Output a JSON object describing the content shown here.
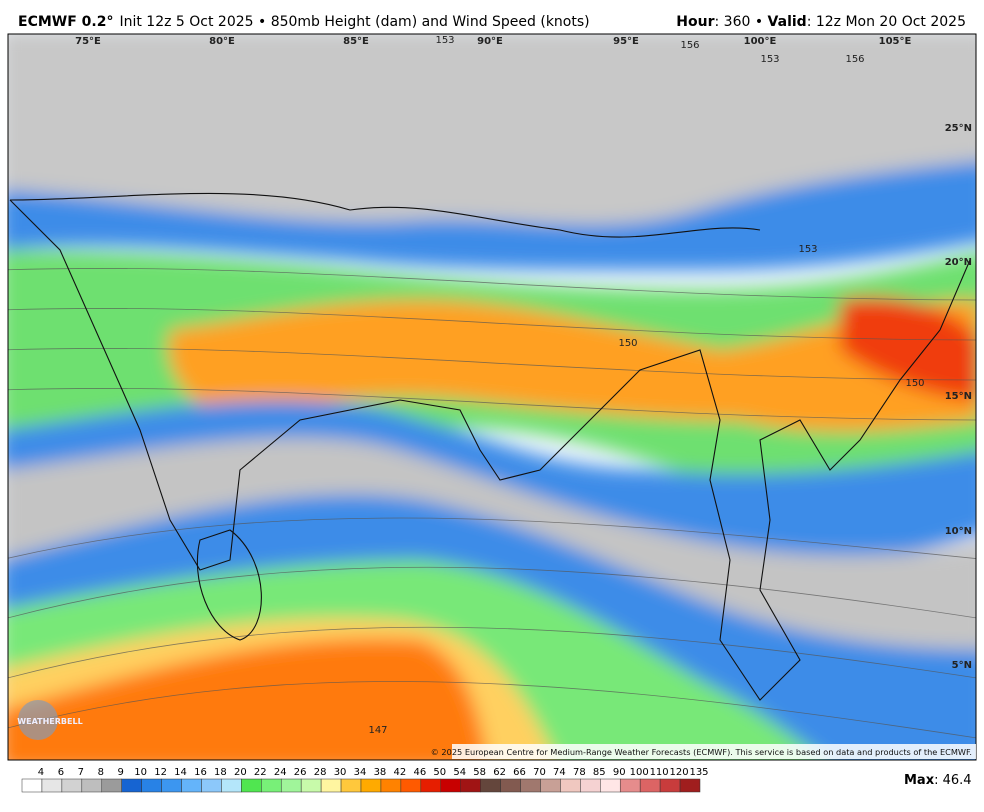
{
  "header": {
    "model": "ECMWF 0.2°",
    "description": "Init 12z 5 Oct 2025 • 850mb Height (dam) and Wind Speed (knots)",
    "hour_label": "Hour",
    "hour_value": ": 360 • ",
    "valid_label": "Valid",
    "valid_value": ": 12z Mon 20 Oct 2025"
  },
  "map": {
    "longitude_labels": [
      "75°E",
      "80°E",
      "85°E",
      "90°E",
      "95°E",
      "100°E",
      "105°E"
    ],
    "latitude_labels": [
      "25°N",
      "20°N",
      "15°N",
      "10°N",
      "5°N"
    ],
    "contour_labels": [
      "153",
      "153",
      "153",
      "156",
      "156",
      "150",
      "150",
      "147"
    ],
    "logo": "WEATHERBELL",
    "copyright": "© 2025 European Centre for Medium-Range Weather Forecasts (ECMWF). This service is based on data and products of the ECMWF."
  },
  "legend": {
    "values": [
      4,
      6,
      7,
      8,
      9,
      10,
      12,
      14,
      16,
      18,
      20,
      22,
      24,
      26,
      28,
      30,
      34,
      38,
      42,
      46,
      50,
      54,
      58,
      62,
      66,
      70,
      74,
      78,
      85,
      90,
      100,
      110,
      120,
      135
    ],
    "colors": [
      "#ffffff",
      "#e6e6e6",
      "#d2d2d2",
      "#bebebe",
      "#9b9b9b",
      "#1664d2",
      "#2882e6",
      "#3c96f0",
      "#64b4fa",
      "#8cc8fa",
      "#b4e6fa",
      "#50e650",
      "#78f078",
      "#a0f59a",
      "#c8faaa",
      "#fff5a0",
      "#ffc83c",
      "#ffaa00",
      "#ff8200",
      "#ff5a00",
      "#e61e00",
      "#c80000",
      "#a01414",
      "#64463c",
      "#825a50",
      "#a0786e",
      "#c8a096",
      "#f0c8c0",
      "#f5d2d2",
      "#ffe6e6",
      "#e68c8c",
      "#dc6464",
      "#c83c3c",
      "#a01e1e"
    ]
  },
  "footer": {
    "max_label": "Max",
    "max_value": ": 46.4"
  }
}
